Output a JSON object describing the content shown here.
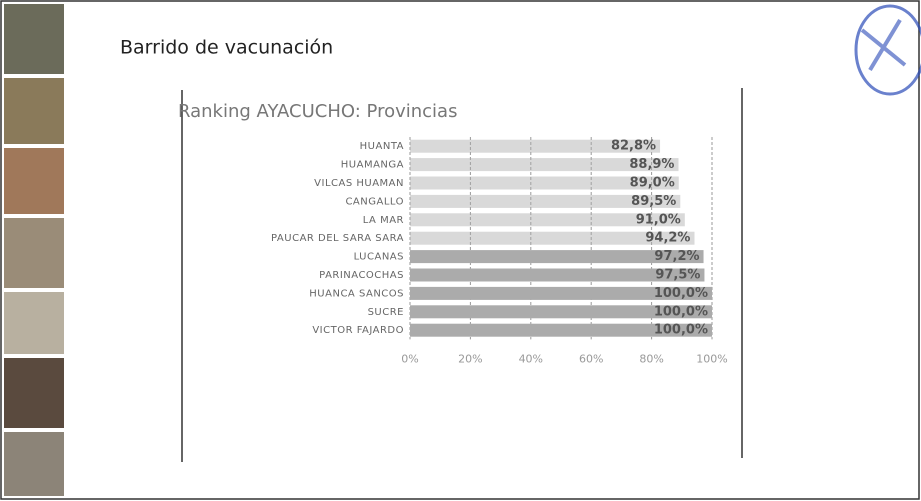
{
  "header": {
    "title": "Barrido de vacunación"
  },
  "chart_data": {
    "type": "barh",
    "title": "Ranking AYACUCHO: Provincias",
    "categories": [
      "HUANTA",
      "HUAMANGA",
      "VILCAS HUAMAN",
      "CANGALLO",
      "LA MAR",
      "PAUCAR DEL SARA SARA",
      "LUCANAS",
      "PARINACOCHAS",
      "HUANCA SANCOS",
      "SUCRE",
      "VICTOR FAJARDO"
    ],
    "values": [
      82.8,
      88.9,
      89.0,
      89.5,
      91.0,
      94.2,
      97.2,
      97.5,
      100.0,
      100.0,
      100.0
    ],
    "value_labels": [
      "82,8%",
      "88,9%",
      "89,0%",
      "89,5%",
      "91,0%",
      "94,2%",
      "97,2%",
      "97,5%",
      "100,0%",
      "100,0%",
      "100,0%"
    ],
    "color": "#ababab",
    "xlim": [
      0,
      100
    ],
    "xticks": [
      {
        "value": 0,
        "label": "0%"
      },
      {
        "value": 20,
        "label": "20%"
      },
      {
        "value": 40,
        "label": "40%"
      },
      {
        "value": 60,
        "label": "60%"
      },
      {
        "value": 80,
        "label": "80%"
      },
      {
        "value": 100,
        "label": "100%"
      }
    ],
    "grid": true
  }
}
